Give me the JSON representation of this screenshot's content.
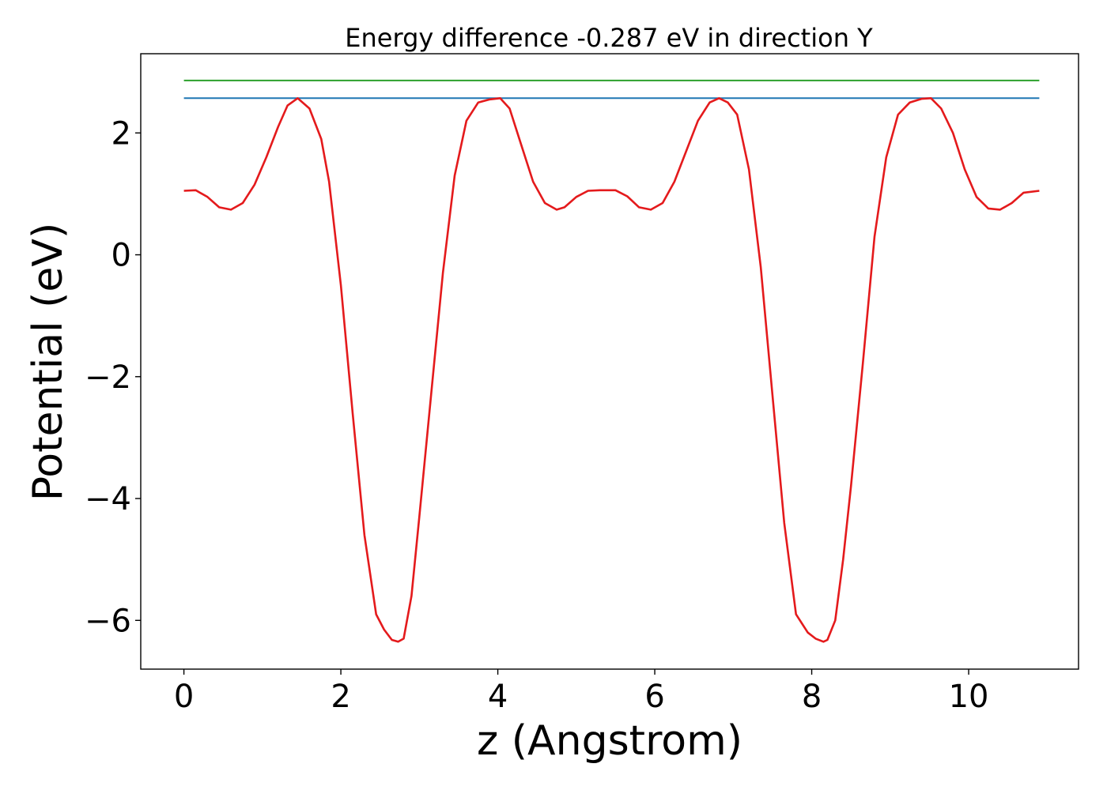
{
  "chart_data": {
    "type": "line",
    "title": "Energy difference -0.287 eV in direction Y",
    "xlabel": "z (Angstrom)",
    "ylabel": "Potential (eV)",
    "xlim": [
      -0.55,
      11.4
    ],
    "ylim": [
      -6.8,
      3.3
    ],
    "xticks": [
      0,
      2,
      4,
      6,
      8,
      10
    ],
    "xtick_labels": [
      "0",
      "2",
      "4",
      "6",
      "8",
      "10"
    ],
    "yticks": [
      -6,
      -4,
      -2,
      0,
      2
    ],
    "ytick_labels": [
      "−6",
      "−4",
      "−2",
      "0",
      "2"
    ],
    "grid": false,
    "legend": "none",
    "series": [
      {
        "color": "#2ca02c",
        "x": [
          0,
          10.9
        ],
        "y": [
          2.86,
          2.86
        ]
      },
      {
        "color": "#1f77b4",
        "x": [
          0,
          10.9
        ],
        "y": [
          2.57,
          2.57
        ]
      },
      {
        "color": "#e41a1c",
        "x": [
          0,
          0.15,
          0.3,
          0.45,
          0.6,
          0.75,
          0.9,
          1.05,
          1.2,
          1.32,
          1.45,
          1.6,
          1.75,
          1.85,
          2.0,
          2.15,
          2.3,
          2.45,
          2.55,
          2.65,
          2.73,
          2.8,
          2.9,
          3.0,
          3.15,
          3.3,
          3.45,
          3.6,
          3.75,
          3.9,
          4.03,
          4.15,
          4.3,
          4.45,
          4.6,
          4.75,
          4.85,
          5.0,
          5.15,
          5.3,
          5.5,
          5.65,
          5.8,
          5.95,
          6.1,
          6.25,
          6.4,
          6.55,
          6.7,
          6.82,
          6.93,
          7.05,
          7.2,
          7.35,
          7.5,
          7.65,
          7.8,
          7.95,
          8.05,
          8.15,
          8.2,
          8.3,
          8.4,
          8.5,
          8.65,
          8.8,
          8.95,
          9.1,
          9.25,
          9.4,
          9.52,
          9.65,
          9.8,
          9.95,
          10.1,
          10.25,
          10.4,
          10.55,
          10.7,
          10.9
        ],
        "y": [
          1.05,
          1.06,
          0.95,
          0.78,
          0.74,
          0.85,
          1.15,
          1.6,
          2.1,
          2.45,
          2.57,
          2.4,
          1.9,
          1.2,
          -0.5,
          -2.6,
          -4.6,
          -5.9,
          -6.15,
          -6.32,
          -6.35,
          -6.3,
          -5.6,
          -4.3,
          -2.3,
          -0.3,
          1.3,
          2.2,
          2.5,
          2.55,
          2.57,
          2.4,
          1.8,
          1.2,
          0.85,
          0.74,
          0.78,
          0.95,
          1.05,
          1.06,
          1.06,
          0.96,
          0.78,
          0.74,
          0.85,
          1.2,
          1.7,
          2.2,
          2.5,
          2.57,
          2.5,
          2.3,
          1.4,
          -0.2,
          -2.3,
          -4.4,
          -5.9,
          -6.2,
          -6.3,
          -6.35,
          -6.32,
          -6.0,
          -5.0,
          -3.8,
          -1.8,
          0.3,
          1.6,
          2.3,
          2.5,
          2.56,
          2.57,
          2.4,
          2.0,
          1.4,
          0.95,
          0.76,
          0.74,
          0.85,
          1.02,
          1.05
        ]
      }
    ]
  }
}
